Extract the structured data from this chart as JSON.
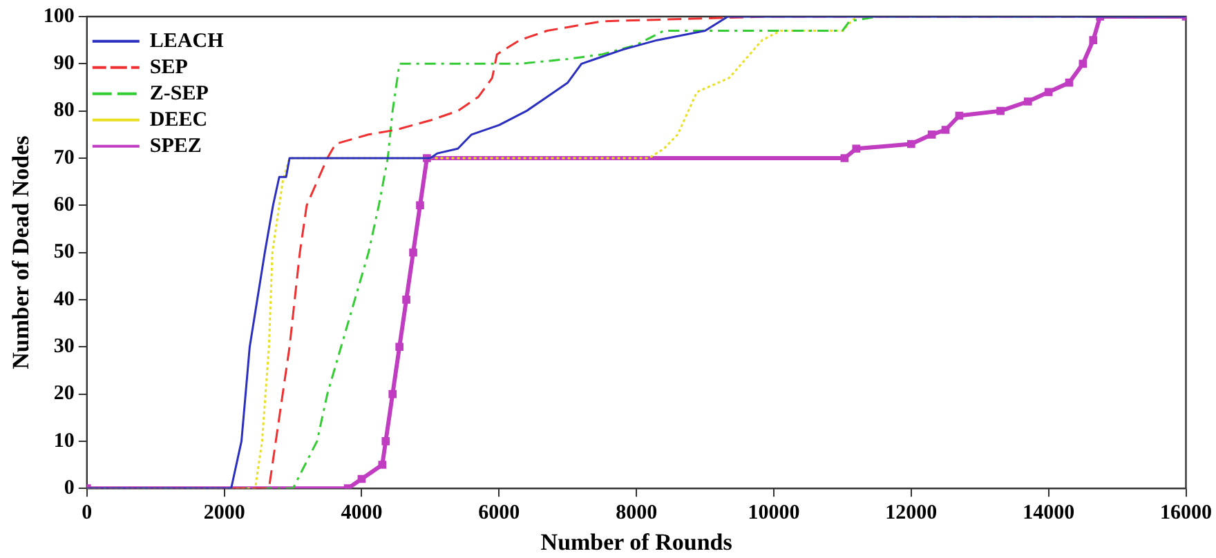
{
  "chart_data": {
    "type": "line",
    "xlabel": "Number of Rounds",
    "ylabel": "Number of Dead Nodes",
    "xlim": [
      0,
      16000
    ],
    "xticks": [
      0,
      2000,
      4000,
      6000,
      8000,
      10000,
      12000,
      14000,
      16000
    ],
    "ylim": [
      0,
      100
    ],
    "yticks": [
      0,
      10,
      20,
      30,
      40,
      50,
      60,
      70,
      80,
      90,
      100
    ],
    "grid": false,
    "legend": "top left",
    "series": [
      {
        "name": "LEACH",
        "color": "#2b2fbf",
        "line_style": "solid",
        "marker": "none",
        "x": [
          0,
          2100,
          2250,
          2370,
          2590,
          2710,
          2800,
          2900,
          2950,
          5000,
          5100,
          5400,
          5600,
          6000,
          6400,
          6700,
          7000,
          7200,
          7400,
          7800,
          8300,
          9000,
          9330,
          16000
        ],
        "values": [
          0,
          0,
          10,
          30,
          50,
          60,
          66,
          66,
          70,
          70,
          71,
          72,
          75,
          77,
          80,
          83,
          86,
          90,
          91,
          93,
          95,
          97,
          100,
          100
        ]
      },
      {
        "name": "SEP",
        "color": "#f03030",
        "line_style": "dashed",
        "marker": "none",
        "x": [
          0,
          2650,
          2750,
          2950,
          3100,
          3200,
          3500,
          3620,
          4100,
          4500,
          5000,
          5400,
          5700,
          5900,
          5970,
          6300,
          6700,
          7500,
          9900,
          16000
        ],
        "values": [
          0,
          0,
          10,
          30,
          50,
          60,
          70,
          73,
          75,
          76,
          78,
          80,
          83,
          87,
          92,
          95,
          97,
          99,
          100,
          100
        ]
      },
      {
        "name": "Z-SEP",
        "color": "#33cc33",
        "line_style": "dashdot",
        "marker": "none",
        "x": [
          0,
          3000,
          3350,
          3500,
          3700,
          3900,
          4100,
          4250,
          4380,
          4450,
          4550,
          6300,
          7000,
          7500,
          8000,
          8400,
          11000,
          11100,
          11500,
          16000
        ],
        "values": [
          0,
          0,
          10,
          20,
          30,
          40,
          50,
          60,
          70,
          80,
          90,
          90,
          91,
          92,
          94,
          97,
          97,
          99,
          100,
          100
        ]
      },
      {
        "name": "DEEC",
        "color": "#e8e020",
        "line_style": "dotted",
        "marker": "none",
        "x": [
          0,
          2450,
          2550,
          2650,
          2700,
          2850,
          2950,
          8180,
          8400,
          8600,
          8880,
          9350,
          9830,
          10100,
          11000,
          11200
        ],
        "values": [
          0,
          0,
          10,
          30,
          50,
          65,
          70,
          70,
          72,
          75,
          84,
          87,
          95,
          97,
          97,
          100
        ]
      },
      {
        "name": "SPEZ",
        "color": "#c03cc0",
        "line_style": "solid",
        "marker": "square",
        "x": [
          0,
          3800,
          4000,
          4300,
          4350,
          4450,
          4550,
          4650,
          4750,
          4850,
          4950,
          11030,
          11200,
          12000,
          12300,
          12500,
          12700,
          13300,
          13700,
          14000,
          14300,
          14500,
          14650,
          14750,
          16000
        ],
        "values": [
          0,
          0,
          2,
          5,
          10,
          20,
          30,
          40,
          50,
          60,
          70,
          70,
          72,
          73,
          75,
          76,
          79,
          80,
          82,
          84,
          86,
          90,
          95,
          100,
          100
        ]
      }
    ]
  }
}
